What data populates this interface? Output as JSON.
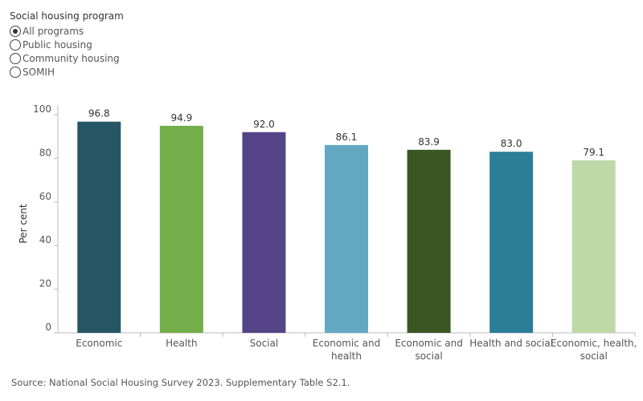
{
  "filter": {
    "title": "Social housing program",
    "options": [
      {
        "label": "All programs",
        "checked": true
      },
      {
        "label": "Public housing",
        "checked": false
      },
      {
        "label": "Community housing",
        "checked": false
      },
      {
        "label": "SOMIH",
        "checked": false
      }
    ]
  },
  "chart_data": {
    "type": "bar",
    "categories": [
      "Economic",
      "Health",
      "Social",
      "Economic and health",
      "Economic and social",
      "Health and social",
      "Economic, health, social"
    ],
    "category_lines": [
      [
        "Economic"
      ],
      [
        "Health"
      ],
      [
        "Social"
      ],
      [
        "Economic and",
        "health"
      ],
      [
        "Economic and",
        "social"
      ],
      [
        "Health and social"
      ],
      [
        "Economic, health,",
        "social"
      ]
    ],
    "values": [
      96.8,
      94.9,
      92.0,
      86.1,
      83.9,
      83.0,
      79.1
    ],
    "value_labels": [
      "96.8",
      "94.9",
      "92.0",
      "86.1",
      "83.9",
      "83.0",
      "79.1"
    ],
    "colors": [
      "#265663",
      "#74ae4a",
      "#554488",
      "#62a8c1",
      "#3a5624",
      "#2b7e98",
      "#bed9a8"
    ],
    "ylabel": "Per cent",
    "ylim": [
      0,
      100
    ],
    "yticks": [
      0,
      20,
      40,
      60,
      80,
      100
    ],
    "grid": false
  },
  "source": "Source: National Social Housing Survey 2023. Supplementary Table S2.1."
}
